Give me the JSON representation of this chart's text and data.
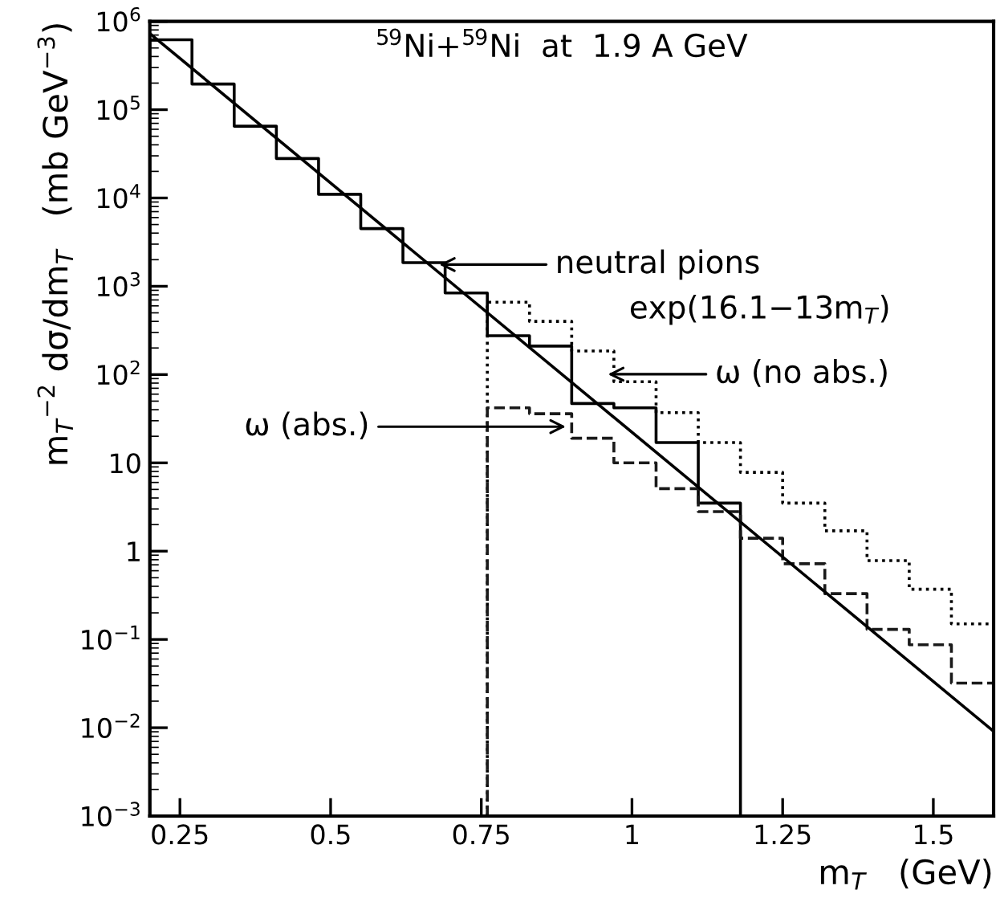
{
  "chart_data": {
    "type": "histogram",
    "title": "$^{59}$Ni+$^{59}$Ni  at  1.9 A GeV",
    "xlabel": "m$_{T}$   (GeV)",
    "ylabel": "m$_{T}$$^{−2}$ dσ/dm$_{T}$   (mb GeV$^{−3}$)",
    "series": [
      {
        "color": "#000000",
        "line_style": "solid",
        "bins": [
          0.2,
          0.27,
          0.34,
          0.41,
          0.48,
          0.55,
          0.62,
          0.69,
          0.76,
          0.83,
          0.9,
          0.97,
          1.04,
          1.11,
          1.18
        ],
        "values": [
          620000,
          195000,
          65000,
          28000,
          11000,
          4500,
          1850,
          840,
          275,
          210,
          47,
          42,
          17,
          3.5
        ]
      },
      {
        "color": "#000000",
        "line_style": "dotted",
        "bins": [
          0.76,
          0.83,
          0.9,
          0.97,
          1.04,
          1.11,
          1.18,
          1.25,
          1.32,
          1.39,
          1.46,
          1.53,
          1.6
        ],
        "values": [
          660,
          400,
          185,
          83,
          37,
          17,
          7.8,
          3.5,
          1.7,
          0.78,
          0.37,
          0.15
        ]
      },
      {
        "color": "#1a1a1a",
        "line_style": "dashed",
        "bins": [
          0.76,
          0.83,
          0.9,
          0.97,
          1.04,
          1.11,
          1.18,
          1.25,
          1.32,
          1.39,
          1.46,
          1.53,
          1.6
        ],
        "values": [
          42,
          36,
          19,
          10,
          5.1,
          2.8,
          1.4,
          0.72,
          0.33,
          0.13,
          0.087,
          0.032
        ]
      },
      {
        "type": "line",
        "color": "#000000",
        "line_style": "solid",
        "x": [
          0.2,
          1.6
        ],
        "values": [
          730000,
          0.0091
        ]
      }
    ],
    "annotations": [
      "neutral pions",
      "exp(16.1−13m$_{T}$)",
      "ω (no abs.)",
      "ω (abs.)"
    ],
    "log": true,
    "xlim": [
      0.2,
      1.6
    ],
    "ylim": [
      0.001,
      1000000
    ],
    "xticks": [
      0.25,
      0.5,
      0.75,
      1,
      1.25,
      1.5
    ],
    "yticks": [
      {
        "value": 0.001,
        "label": "10$^{−3}$"
      },
      {
        "value": 0.01,
        "label": "10$^{−2}$"
      },
      {
        "value": 0.1,
        "label": "10$^{−1}$"
      },
      1,
      10,
      {
        "value": 100,
        "label": "10$^{2}$"
      },
      {
        "value": 1000,
        "label": "10$^{3}$"
      },
      {
        "value": 10000,
        "label": "10$^{4}$"
      },
      {
        "value": 100000,
        "label": "10$^{5}$"
      },
      {
        "value": 1000000,
        "label": "10$^{6}$"
      }
    ],
    "grid": false,
    "legend": false
  }
}
